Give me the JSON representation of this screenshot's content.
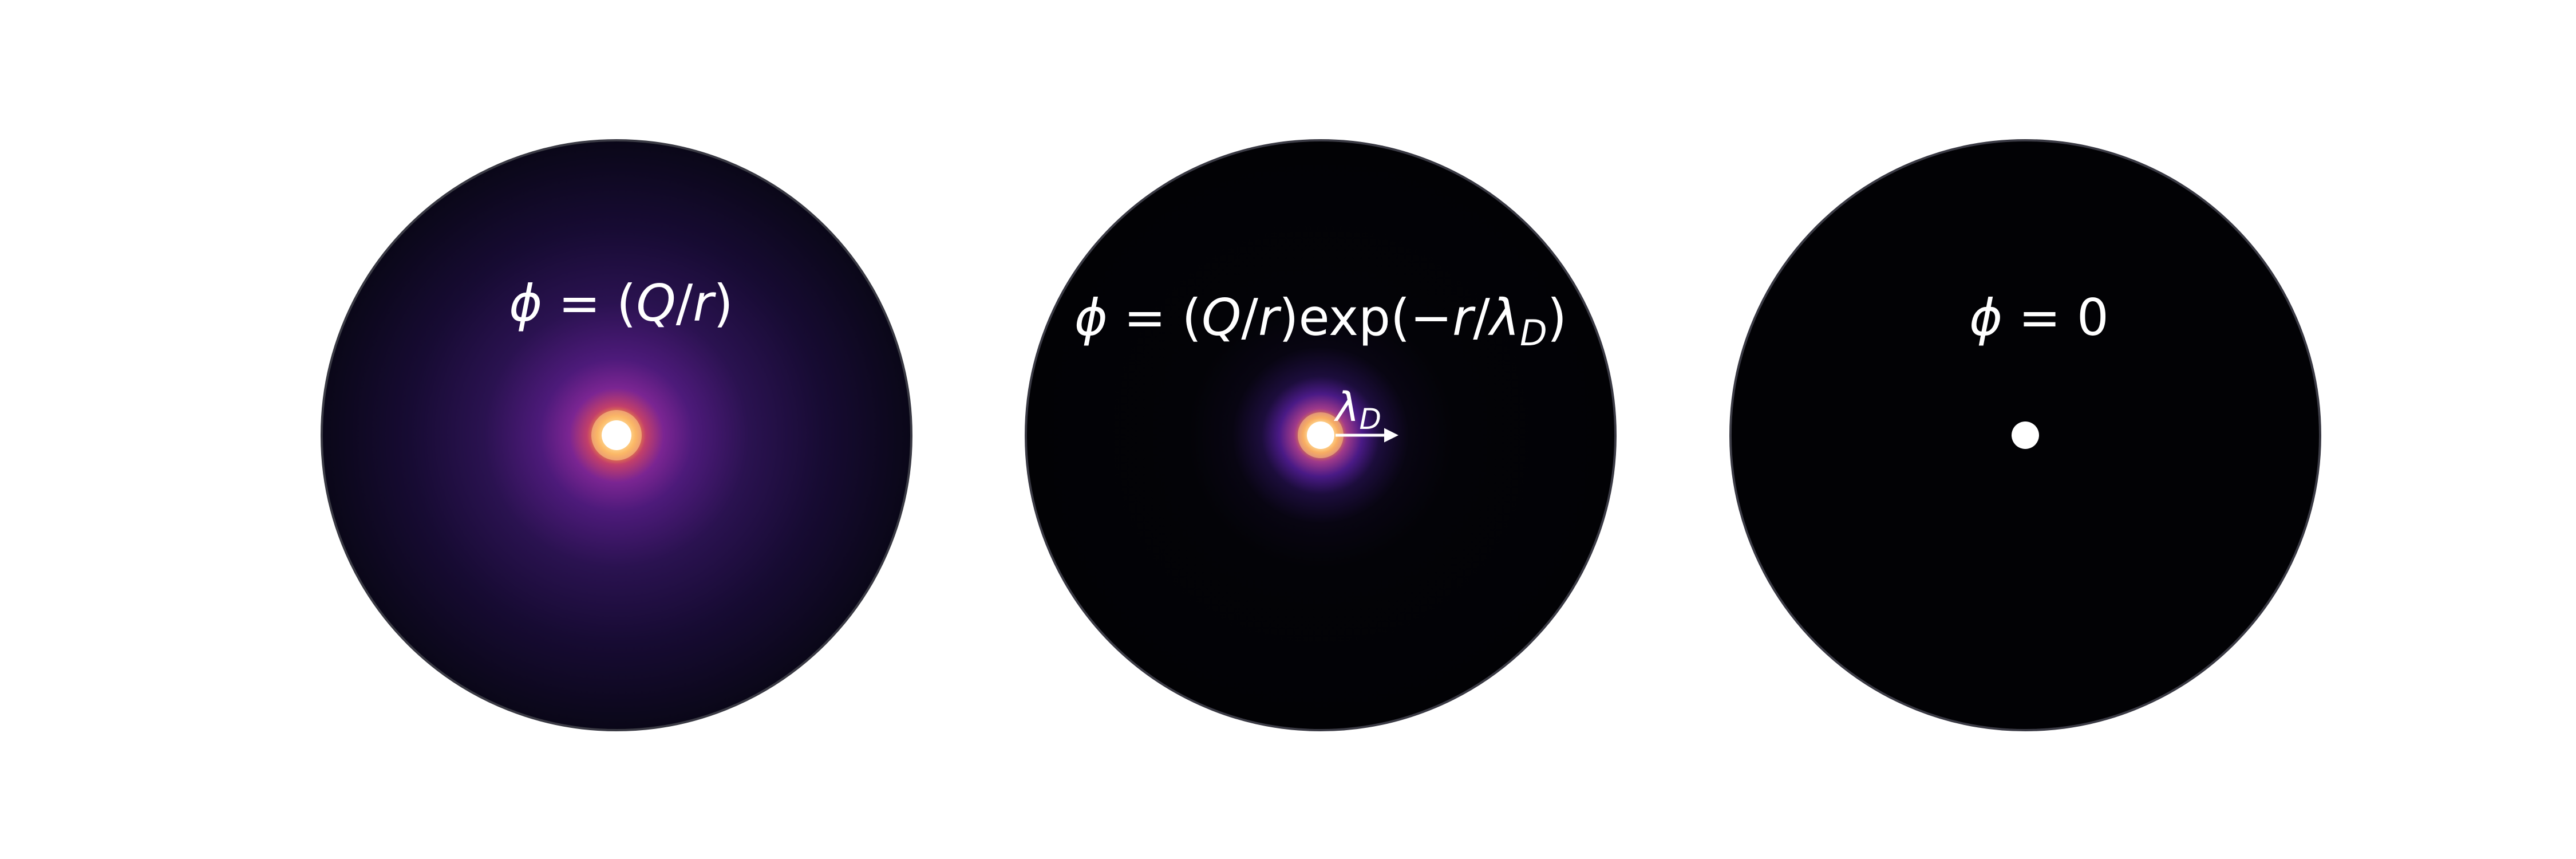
{
  "panels": [
    {
      "id": "coulomb",
      "equation": {
        "phi": "ϕ",
        "eq": " = (",
        "Q": "Q",
        "slash": "/",
        "r": "r",
        "close": ")"
      }
    },
    {
      "id": "debye",
      "equation": {
        "phi": "ϕ",
        "eq": " = (",
        "Q": "Q",
        "slash": "/",
        "r": "r",
        "mid": ")exp(−",
        "r2": "r",
        "slash2": "/",
        "lambda": "λ",
        "sub": "D",
        "close": ")"
      },
      "length_label": {
        "lambda": "λ",
        "sub": "D"
      }
    },
    {
      "id": "full-shielding",
      "equation": {
        "phi": "ϕ",
        "eq": " = 0"
      }
    }
  ],
  "colors": {
    "background": "#ffffff",
    "disk_dark": "#020205",
    "disk_edge": "#3a3a44",
    "glow_violet": "#6a1fa0",
    "glow_magenta": "#b3357a",
    "glow_orange": "#f59a3a",
    "charge": "#ffffff"
  }
}
